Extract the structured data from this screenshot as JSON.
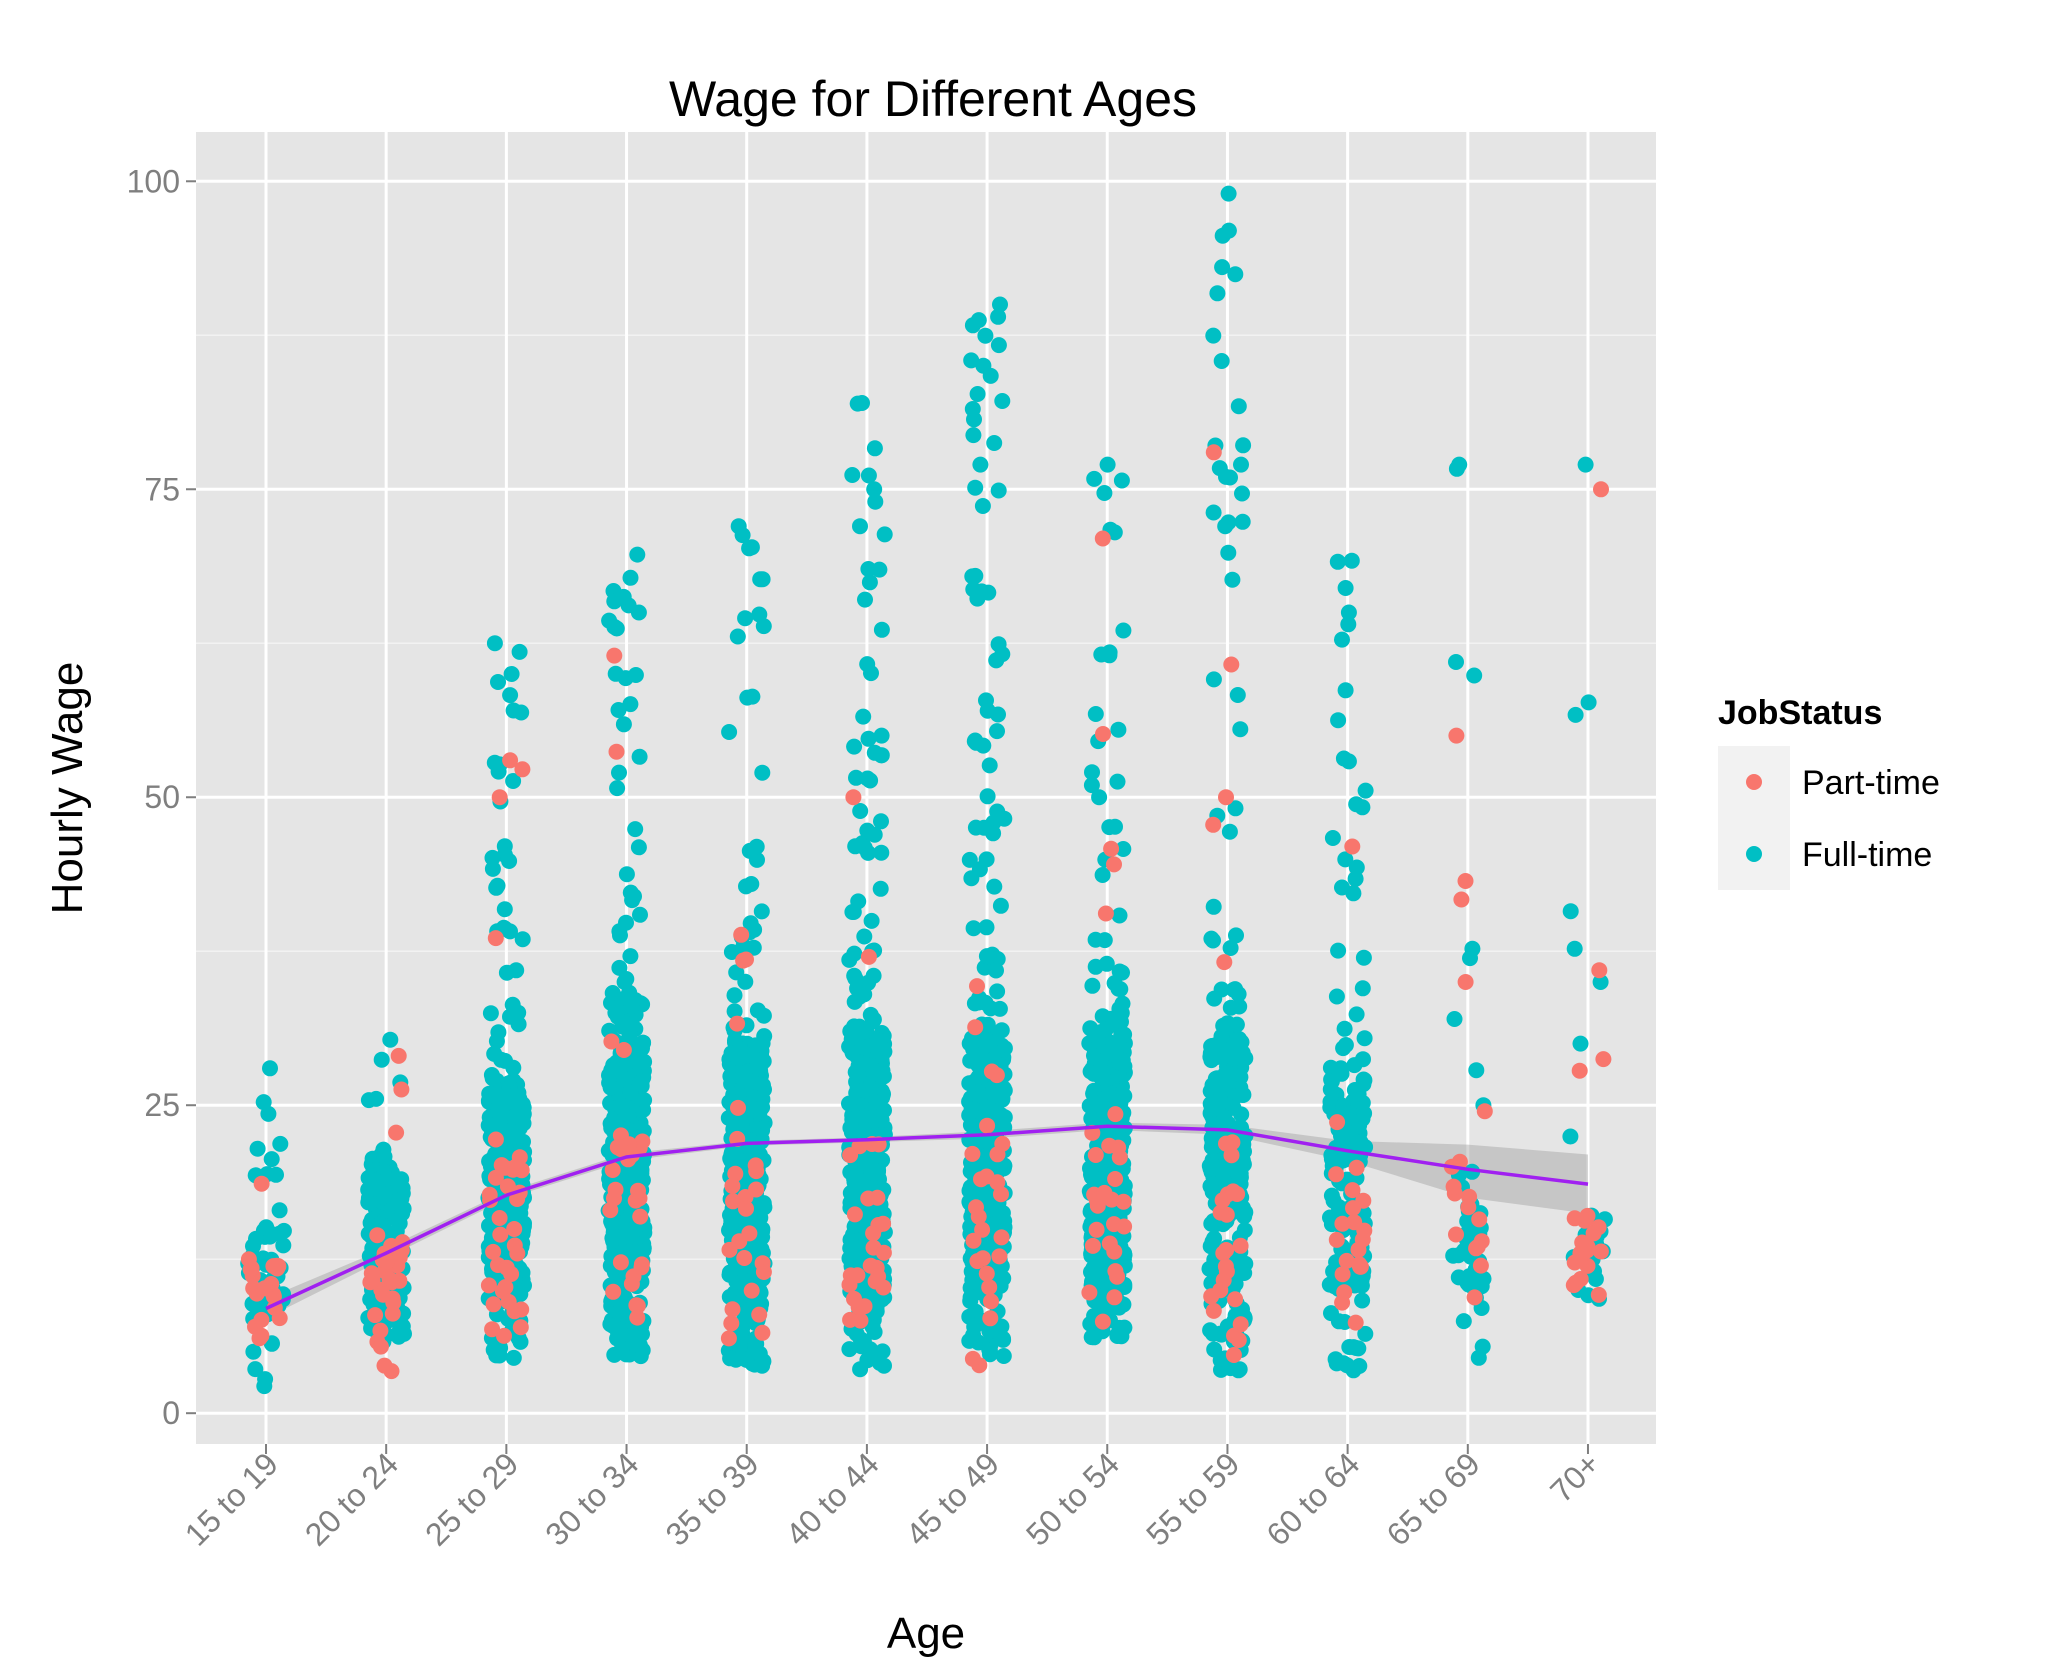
{
  "chart_data": {
    "type": "scatter",
    "title": "Wage for Different Ages",
    "xlabel": "Age",
    "ylabel": "Hourly Wage",
    "categories": [
      "15 to 19",
      "20 to 24",
      "25 to 29",
      "30 to 34",
      "35 to 39",
      "40 to 44",
      "45 to 49",
      "50 to 54",
      "55 to 59",
      "60 to 64",
      "65 to 69",
      "70+"
    ],
    "yticks": [
      0,
      25,
      50,
      75,
      100
    ],
    "ytick_labels": [
      "0",
      "25",
      "50",
      "75",
      "100"
    ],
    "ylim": [
      -2.5,
      104
    ],
    "grid": true,
    "jitter": true,
    "legend": {
      "title": "JobStatus",
      "position": "right",
      "entries": [
        {
          "label": "Part-time",
          "color": "#F8766D"
        },
        {
          "label": "Full-time",
          "color": "#00BFC4"
        }
      ]
    },
    "series": [
      {
        "status": "part-time",
        "color": "#F8766D",
        "summary": [
          {
            "min": 5.8,
            "q1": 7.8,
            "q3": 12.5,
            "max": 20,
            "n": 22
          },
          {
            "min": 3.3,
            "q1": 7.5,
            "q3": 15,
            "max": 29,
            "n": 30
          },
          {
            "min": 4,
            "q1": 8.5,
            "q3": 20,
            "max": 53,
            "n": 34
          },
          {
            "min": 6,
            "q1": 9,
            "q3": 22,
            "max": 61.5,
            "n": 30
          },
          {
            "min": 6,
            "q1": 9,
            "q3": 22,
            "max": 54,
            "n": 26
          },
          {
            "min": 5,
            "q1": 9,
            "q3": 22,
            "max": 50,
            "n": 26
          },
          {
            "min": 2.5,
            "q1": 9,
            "q3": 22,
            "max": 35,
            "n": 26
          },
          {
            "min": 6,
            "q1": 9,
            "q3": 22,
            "max": 71,
            "n": 28
          },
          {
            "min": 4,
            "q1": 9,
            "q3": 22,
            "max": 78,
            "n": 26
          },
          {
            "min": 6,
            "q1": 9,
            "q3": 20,
            "max": 46,
            "n": 20
          },
          {
            "min": 9,
            "q1": 12,
            "q3": 24,
            "max": 55,
            "n": 14
          },
          {
            "min": 9.5,
            "q1": 11,
            "q3": 16,
            "max": 75,
            "n": 20
          }
        ],
        "notable": [
          [
            5,
            50
          ],
          [
            7,
            71
          ],
          [
            8,
            78
          ],
          [
            8,
            50
          ],
          [
            9,
            46
          ],
          [
            10,
            55
          ],
          [
            10,
            43.2
          ],
          [
            10,
            41.7
          ],
          [
            10,
            35
          ],
          [
            11,
            75
          ],
          [
            11,
            27.8
          ],
          [
            3,
            61.5
          ],
          [
            3,
            53.7
          ],
          [
            1,
            29
          ],
          [
            2,
            53
          ],
          [
            2,
            50
          ]
        ]
      },
      {
        "status": "full-time",
        "color": "#00BFC4",
        "summary": [
          {
            "min": 2.2,
            "q1": 8,
            "q3": 15,
            "max": 28,
            "n": 60
          },
          {
            "min": 5,
            "q1": 9,
            "q3": 19,
            "max": 32,
            "n": 160
          },
          {
            "min": 4,
            "q1": 10,
            "q3": 26,
            "max": 62.5,
            "n": 340
          },
          {
            "min": 4.6,
            "q1": 11,
            "q3": 30,
            "max": 69.7,
            "n": 400
          },
          {
            "min": 3.8,
            "q1": 11,
            "q3": 30,
            "max": 72,
            "n": 400
          },
          {
            "min": 3.3,
            "q1": 11,
            "q3": 30,
            "max": 82,
            "n": 400
          },
          {
            "min": 4.6,
            "q1": 11,
            "q3": 30,
            "max": 90,
            "n": 380
          },
          {
            "min": 6,
            "q1": 11,
            "q3": 30,
            "max": 77,
            "n": 380
          },
          {
            "min": 3.4,
            "q1": 11,
            "q3": 30,
            "max": 99,
            "n": 300
          },
          {
            "min": 3.4,
            "q1": 10,
            "q3": 28,
            "max": 69.2,
            "n": 180
          },
          {
            "min": 4.5,
            "q1": 10,
            "q3": 17,
            "max": 77,
            "n": 40
          },
          {
            "min": 9,
            "q1": 11,
            "q3": 17,
            "max": 77,
            "n": 20
          }
        ],
        "notable": [
          [
            0,
            28
          ],
          [
            0,
            2.2
          ],
          [
            2,
            62.5
          ],
          [
            2,
            60
          ],
          [
            3,
            69.7
          ],
          [
            3,
            65
          ],
          [
            4,
            72
          ],
          [
            4,
            70.3
          ],
          [
            5,
            72
          ],
          [
            5,
            75
          ],
          [
            5,
            82
          ],
          [
            6,
            90
          ],
          [
            6,
            89
          ],
          [
            6,
            86.7
          ],
          [
            6,
            84.2
          ],
          [
            6,
            79.4
          ],
          [
            6,
            77
          ],
          [
            6,
            74.9
          ],
          [
            7,
            77
          ],
          [
            7,
            74.7
          ],
          [
            7,
            71.5
          ],
          [
            8,
            99
          ],
          [
            8,
            96
          ],
          [
            8,
            77
          ],
          [
            8,
            76
          ],
          [
            8,
            72
          ],
          [
            9,
            69.2
          ],
          [
            9,
            65
          ],
          [
            10,
            77
          ],
          [
            10,
            37.7
          ],
          [
            10,
            32
          ],
          [
            10,
            4.5
          ],
          [
            11,
            77
          ],
          [
            11,
            57.7
          ],
          [
            11,
            37.7
          ],
          [
            11,
            35
          ],
          [
            11,
            30
          ]
        ]
      }
    ],
    "trend_line": {
      "color": "#A020F0",
      "values": [
        8.5,
        13.0,
        17.7,
        20.8,
        21.9,
        22.2,
        22.6,
        23.3,
        23.0,
        21.3,
        19.8,
        18.6
      ],
      "ci_lower": [
        7.7,
        12.6,
        17.4,
        20.5,
        21.7,
        22.0,
        22.3,
        23.0,
        22.6,
        20.5,
        17.5,
        16.2
      ],
      "ci_upper": [
        9.3,
        13.4,
        18.0,
        21.1,
        22.1,
        22.4,
        22.9,
        23.6,
        23.4,
        22.1,
        21.8,
        21.0
      ]
    }
  }
}
